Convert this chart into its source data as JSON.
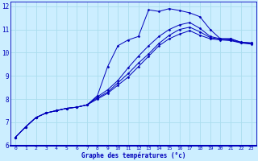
{
  "xlabel": "Graphe des températures (°c)",
  "xlim": [
    -0.5,
    23.5
  ],
  "ylim": [
    6,
    12.2
  ],
  "xticks": [
    0,
    1,
    2,
    3,
    4,
    5,
    6,
    7,
    8,
    9,
    10,
    11,
    12,
    13,
    14,
    15,
    16,
    17,
    18,
    19,
    20,
    21,
    22,
    23
  ],
  "yticks": [
    6,
    7,
    8,
    9,
    10,
    11,
    12
  ],
  "bg_color": "#cceeff",
  "line_color": "#0000bb",
  "grid_color": "#aaddee",
  "series": [
    {
      "x": [
        0,
        1,
        2,
        3,
        4,
        5,
        6,
        7,
        8,
        9,
        10,
        11,
        12,
        13,
        14,
        15,
        16,
        17,
        18,
        19,
        20,
        21,
        22,
        23
      ],
      "y": [
        6.35,
        6.8,
        7.2,
        7.4,
        7.5,
        7.6,
        7.65,
        7.75,
        8.15,
        9.4,
        10.3,
        10.55,
        10.7,
        11.85,
        11.78,
        11.9,
        11.82,
        11.72,
        11.55,
        11.0,
        10.6,
        10.6,
        10.45,
        10.42
      ]
    },
    {
      "x": [
        0,
        1,
        2,
        3,
        4,
        5,
        6,
        7,
        8,
        9,
        10,
        11,
        12,
        13,
        14,
        15,
        16,
        17,
        18,
        19,
        20,
        21,
        22,
        23
      ],
      "y": [
        6.35,
        6.8,
        7.2,
        7.4,
        7.5,
        7.6,
        7.65,
        7.75,
        8.1,
        8.4,
        8.8,
        9.35,
        9.85,
        10.3,
        10.7,
        11.0,
        11.2,
        11.3,
        11.05,
        10.7,
        10.6,
        10.6,
        10.45,
        10.42
      ]
    },
    {
      "x": [
        0,
        1,
        2,
        3,
        4,
        5,
        6,
        7,
        8,
        9,
        10,
        11,
        12,
        13,
        14,
        15,
        16,
        17,
        18,
        19,
        20,
        21,
        22,
        23
      ],
      "y": [
        6.35,
        6.8,
        7.2,
        7.4,
        7.5,
        7.6,
        7.65,
        7.75,
        8.05,
        8.3,
        8.7,
        9.1,
        9.55,
        9.95,
        10.4,
        10.75,
        11.0,
        11.1,
        10.9,
        10.65,
        10.58,
        10.55,
        10.43,
        10.4
      ]
    },
    {
      "x": [
        0,
        1,
        2,
        3,
        4,
        5,
        6,
        7,
        8,
        9,
        10,
        11,
        12,
        13,
        14,
        15,
        16,
        17,
        18,
        19,
        20,
        21,
        22,
        23
      ],
      "y": [
        6.35,
        6.8,
        7.2,
        7.4,
        7.5,
        7.6,
        7.65,
        7.75,
        8.0,
        8.25,
        8.6,
        8.95,
        9.4,
        9.85,
        10.3,
        10.6,
        10.8,
        10.95,
        10.75,
        10.6,
        10.55,
        10.52,
        10.42,
        10.37
      ]
    }
  ]
}
